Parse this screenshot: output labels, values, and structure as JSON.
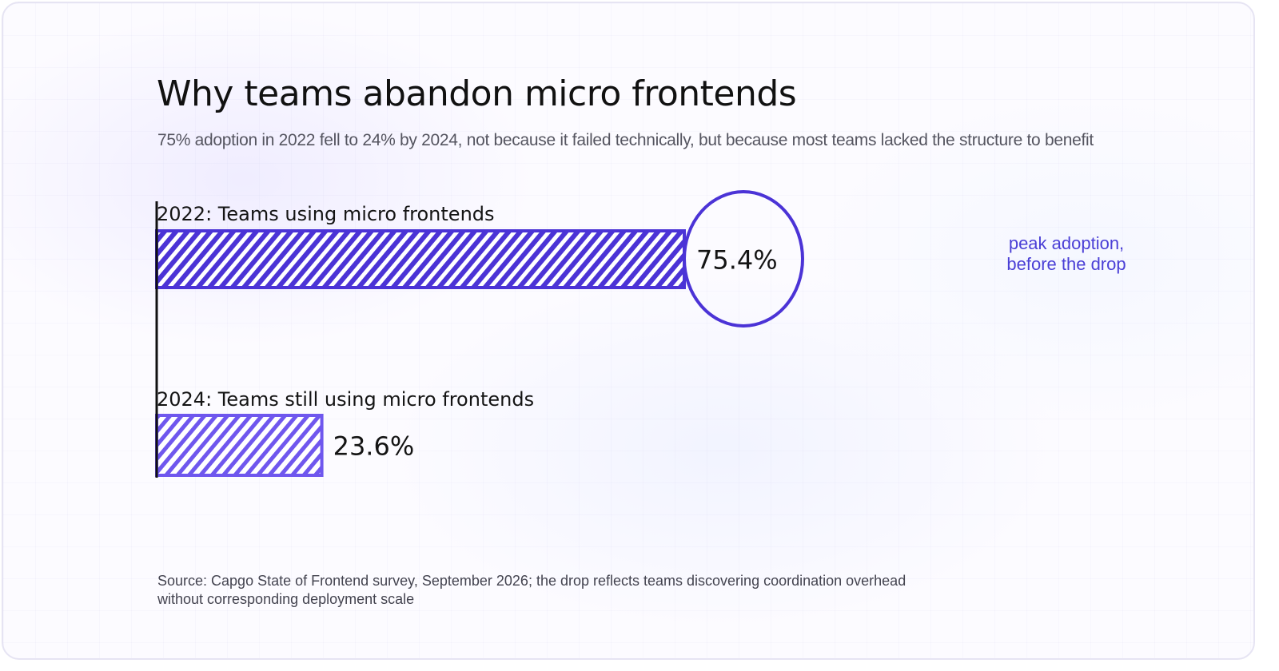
{
  "title": "Why teams abandon micro frontends",
  "subtitle": "75% adoption in 2022 fell to 24% by 2024, not because it failed technically, but because most teams lacked the structure to benefit",
  "source": "Source: Capgo State of Frontend survey, September 2026; the drop reflects teams discovering coordination overhead without corresponding deployment scale",
  "colors": {
    "bar_2022": "#4b33d6",
    "bar_2024": "#6f57ee",
    "annotation": "#4a3fd6",
    "axis": "#111111"
  },
  "chart_data": {
    "type": "bar",
    "orientation": "horizontal",
    "categories": [
      "2022: Teams using micro frontends",
      "2024: Teams still using micro frontends"
    ],
    "values": [
      75.4,
      23.6
    ],
    "value_labels": [
      "75.4%",
      "23.6%"
    ],
    "xlim": [
      0,
      100
    ],
    "grid": false,
    "annotations": [
      {
        "target": "2022: Teams using micro frontends",
        "lines": [
          "peak adoption,",
          "before the drop"
        ],
        "circled_value": true
      }
    ]
  }
}
